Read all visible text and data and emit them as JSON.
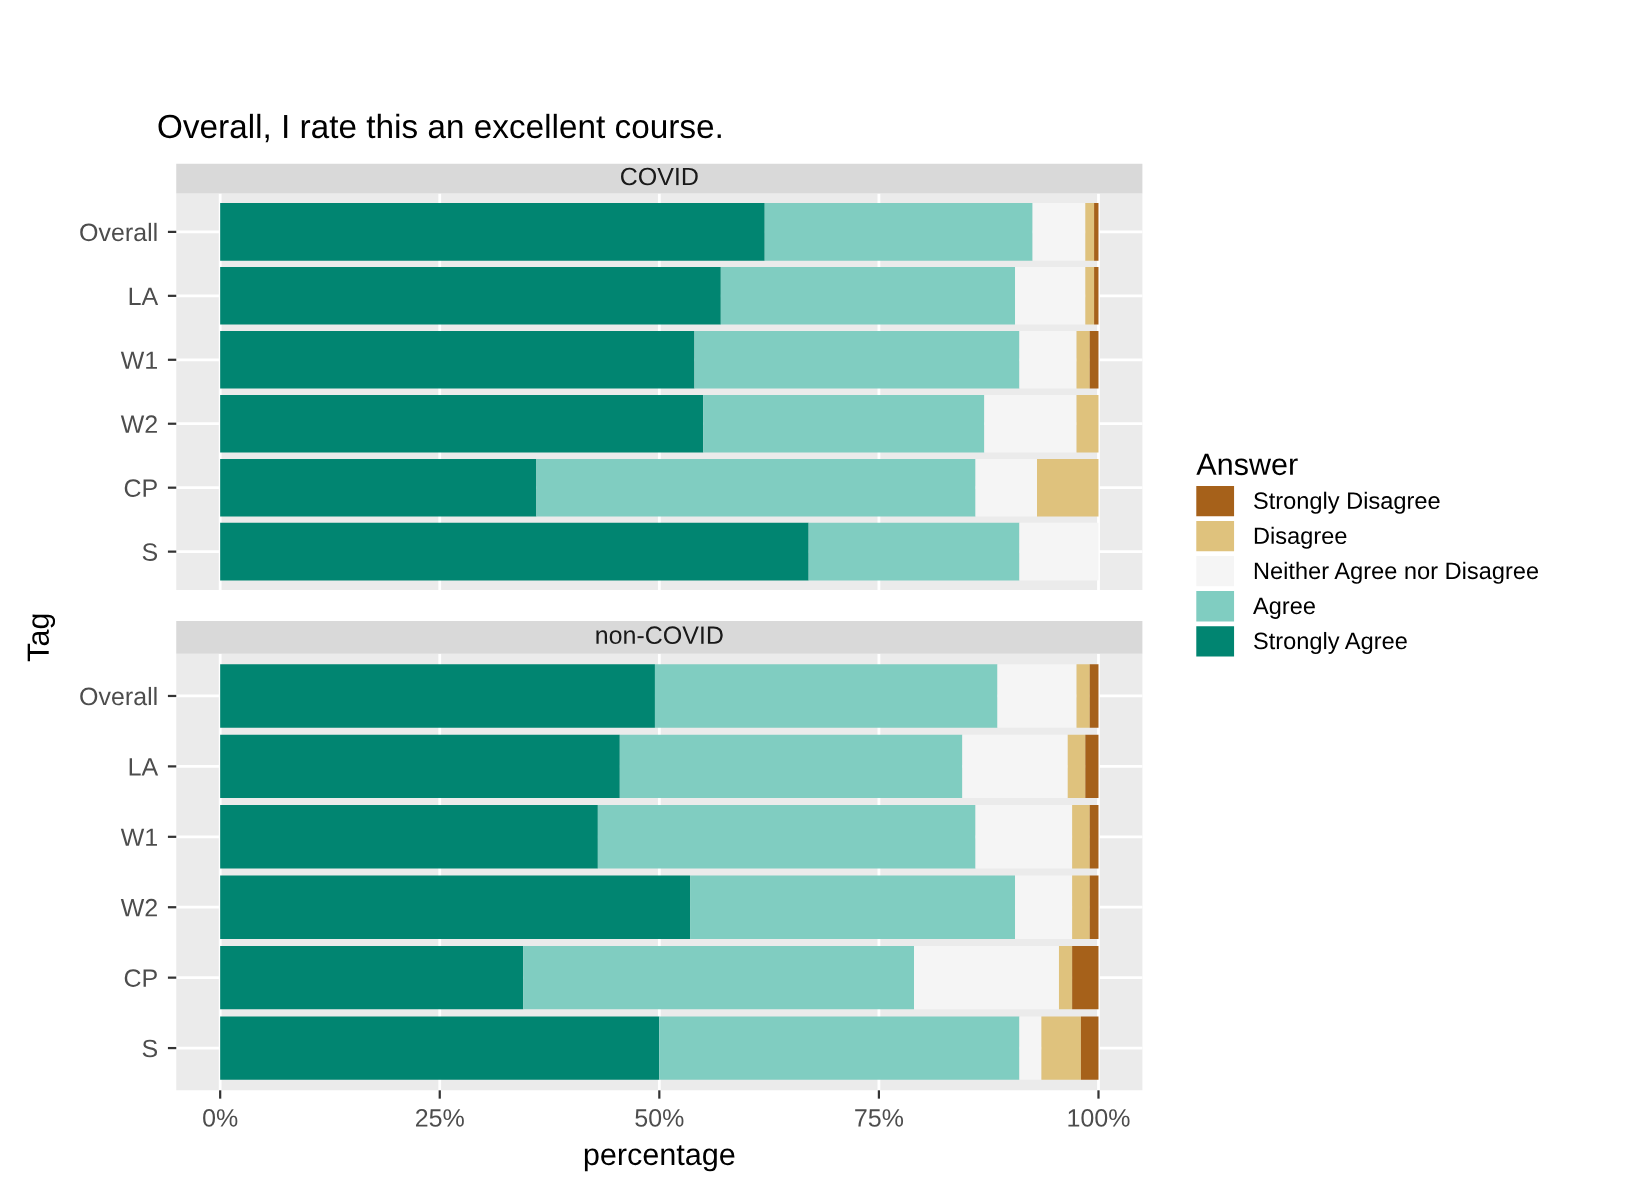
{
  "chart_data": [
    {
      "type": "bar",
      "orientation": "horizontal",
      "stacked": true,
      "title": "Overall, I rate this an excellent course.",
      "subtitle": "COVID",
      "ylabel": "Tag",
      "legend_title": "Answer",
      "legend": "right",
      "grid": true,
      "tick_labels": "y",
      "categories": [
        "Overall",
        "LA",
        "W1",
        "W2",
        "CP",
        "S"
      ],
      "xlim": [
        -5,
        105
      ],
      "xticks": [
        {
          "value": 0,
          "label": null
        },
        {
          "value": 25,
          "label": null
        },
        {
          "value": 50,
          "label": null
        },
        {
          "value": 75,
          "label": null
        },
        {
          "value": 100,
          "label": null
        }
      ],
      "series": [
        {
          "name": "Strongly Agree",
          "color": "#018571",
          "values": [
            62,
            57,
            54,
            55,
            36,
            67
          ]
        },
        {
          "name": "Agree",
          "color": "#80cdc1",
          "values": [
            30.5,
            33.5,
            37,
            32,
            50,
            24
          ]
        },
        {
          "name": "Neither Agree nor Disagree",
          "color": "#f5f5f5",
          "values": [
            6,
            8,
            6.5,
            10.5,
            7,
            9
          ]
        },
        {
          "name": "Disagree",
          "color": "#dfc27d",
          "values": [
            1,
            1,
            1.5,
            2.5,
            7,
            0
          ]
        },
        {
          "name": "Strongly Disagree",
          "color": "#a6611a",
          "values": [
            0.5,
            0.5,
            1,
            0,
            0,
            0
          ]
        }
      ]
    },
    {
      "type": "bar",
      "orientation": "horizontal",
      "stacked": true,
      "subtitle": "non-COVID",
      "xlabel": "percentage",
      "grid": true,
      "categories": [
        "Overall",
        "LA",
        "W1",
        "W2",
        "CP",
        "S"
      ],
      "xlim": [
        -5,
        105
      ],
      "xticks": [
        {
          "value": 0,
          "label": "0%"
        },
        {
          "value": 25,
          "label": "25%"
        },
        {
          "value": 50,
          "label": "50%"
        },
        {
          "value": 75,
          "label": "75%"
        },
        {
          "value": 100,
          "label": "100%"
        }
      ],
      "series": [
        {
          "color": "#018571",
          "values": [
            49.5,
            45.5,
            43,
            53.5,
            34.5,
            50
          ]
        },
        {
          "color": "#80cdc1",
          "values": [
            39,
            39,
            43,
            37,
            44.5,
            41
          ]
        },
        {
          "color": "#f5f5f5",
          "values": [
            9,
            12,
            11,
            6.5,
            16.5,
            2.5
          ]
        },
        {
          "color": "#dfc27d",
          "values": [
            1.5,
            2,
            2,
            2,
            1.5,
            4.5
          ]
        },
        {
          "color": "#a6611a",
          "values": [
            1,
            1.5,
            1,
            1,
            3,
            2
          ]
        }
      ]
    }
  ]
}
